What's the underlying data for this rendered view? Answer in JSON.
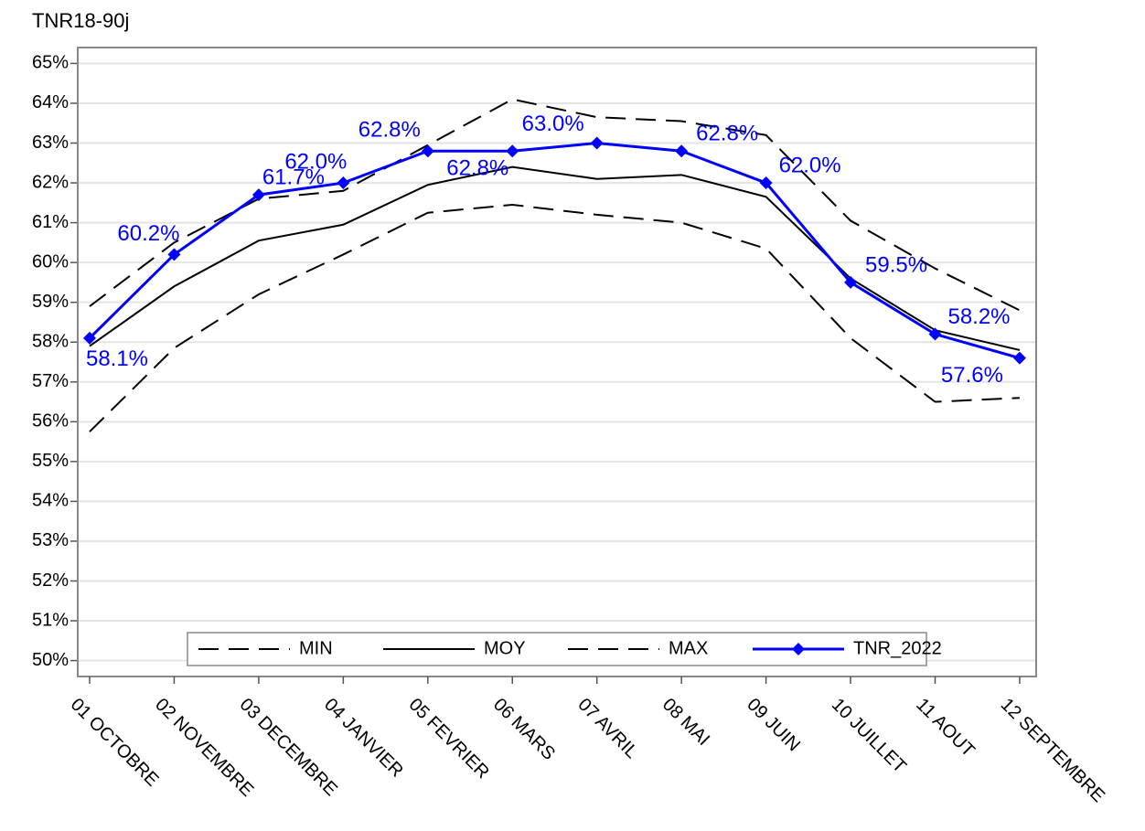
{
  "chart_data": {
    "type": "line",
    "title": "TNR18-90j",
    "categories": [
      "01 OCTOBRE",
      "02 NOVEMBRE",
      "03 DECEMBRE",
      "04 JANVIER",
      "05 FEVRIER",
      "06 MARS",
      "07 AVRIL",
      "08 MAI",
      "09 JUIN",
      "10 JUILLET",
      "11 AOUT",
      "12 SEPTEMBRE"
    ],
    "series": [
      {
        "name": "MIN",
        "color": "#000000",
        "dash": "dashed",
        "values": [
          55.75,
          57.85,
          59.2,
          60.2,
          61.25,
          61.45,
          61.2,
          61.0,
          60.35,
          58.1,
          56.5,
          56.6
        ]
      },
      {
        "name": "MOY",
        "color": "#000000",
        "dash": "solid",
        "values": [
          57.9,
          59.4,
          60.55,
          60.95,
          61.95,
          62.4,
          62.1,
          62.2,
          61.65,
          59.6,
          58.3,
          57.8
        ]
      },
      {
        "name": "MAX",
        "color": "#000000",
        "dash": "dashed",
        "values": [
          58.9,
          60.5,
          61.6,
          61.8,
          62.95,
          64.1,
          63.65,
          63.55,
          63.2,
          61.05,
          59.85,
          58.8
        ]
      },
      {
        "name": "TNR_2022",
        "color": "#0000ff",
        "dash": "solid",
        "marker": "diamond",
        "values": [
          58.1,
          60.2,
          61.7,
          62.0,
          62.8,
          62.8,
          63.0,
          62.8,
          62.0,
          59.5,
          58.2,
          57.6
        ],
        "value_labels": [
          "58.1%",
          "60.2%",
          "61.7%",
          "62.0%",
          "62.8%",
          "62.8%",
          "63.0%",
          "62.8%",
          "62.0%",
          "59.5%",
          "58.2%",
          "57.6%"
        ]
      }
    ],
    "ylim": [
      49.6,
      65.4
    ],
    "yticks": [
      {
        "value": 50,
        "label": "50%"
      },
      {
        "value": 51,
        "label": "51%"
      },
      {
        "value": 52,
        "label": "52%"
      },
      {
        "value": 53,
        "label": "53%"
      },
      {
        "value": 54,
        "label": "54%"
      },
      {
        "value": 55,
        "label": "55%"
      },
      {
        "value": 56,
        "label": "56%"
      },
      {
        "value": 57,
        "label": "57%"
      },
      {
        "value": 58,
        "label": "58%"
      },
      {
        "value": 59,
        "label": "59%"
      },
      {
        "value": 60,
        "label": "60%"
      },
      {
        "value": 61,
        "label": "61%"
      },
      {
        "value": 62,
        "label": "62%"
      },
      {
        "value": 63,
        "label": "63%"
      },
      {
        "value": 64,
        "label": "64%"
      },
      {
        "value": 65,
        "label": "65%"
      }
    ],
    "grid": true,
    "legend": "bottom"
  }
}
